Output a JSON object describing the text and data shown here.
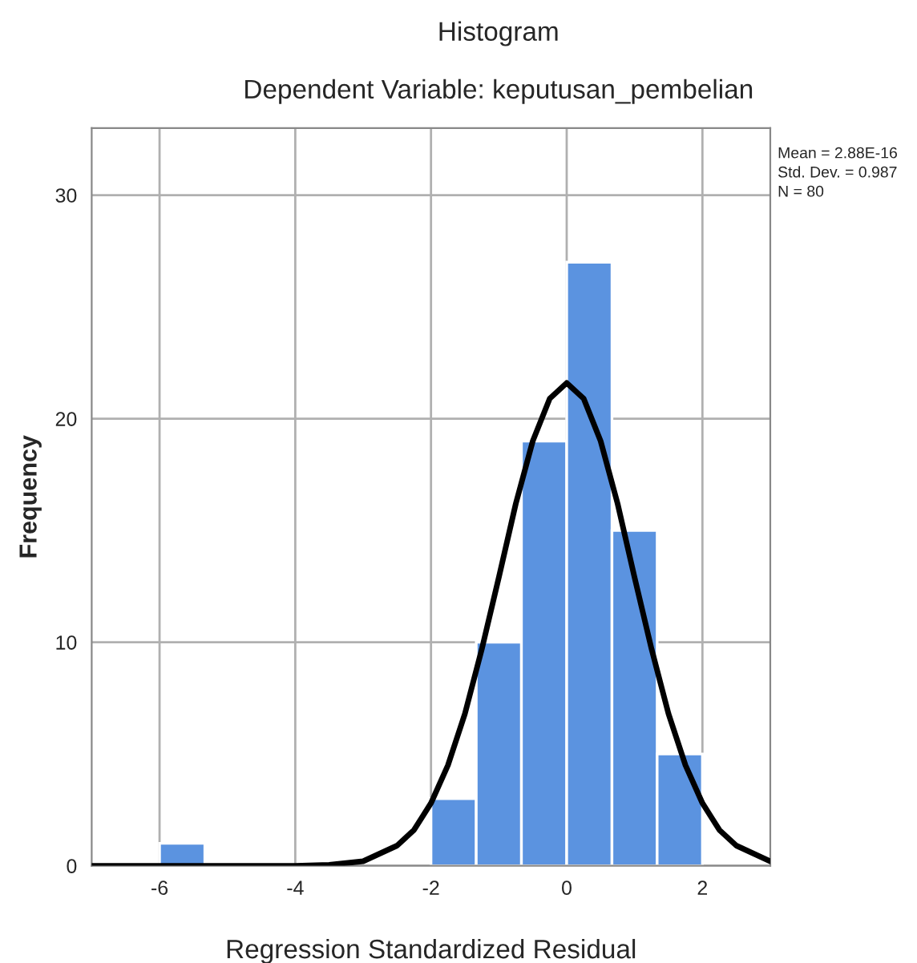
{
  "chart_data": {
    "type": "histogram",
    "title": "Histogram",
    "subtitle": "Dependent Variable: keputusan_pembelian",
    "xlabel": "Regression Standardized Residual",
    "ylabel": "Frequency",
    "bins": [
      -6,
      -5.333,
      -4.667,
      -4,
      -3.333,
      -2.667,
      -2,
      -1.333,
      -0.667,
      0,
      0.667,
      1.333,
      2
    ],
    "values": [
      1,
      0,
      0,
      0,
      0,
      0,
      3,
      10,
      19,
      27,
      15,
      5
    ],
    "color": "#5b93e0",
    "series": [
      {
        "type": "line",
        "color": "#000000",
        "x": [
          -7,
          -4,
          -3.5,
          -3,
          -2.5,
          -2.25,
          -2,
          -1.75,
          -1.5,
          -1.25,
          -1,
          -0.75,
          -0.5,
          -0.25,
          0,
          0.25,
          0.5,
          0.75,
          1,
          1.25,
          1.5,
          1.75,
          2,
          2.25,
          2.5,
          3
        ],
        "values": [
          0,
          0,
          0.04,
          0.2,
          0.9,
          1.6,
          2.8,
          4.5,
          6.8,
          9.7,
          12.9,
          16.2,
          19.0,
          20.9,
          21.6,
          20.9,
          19.0,
          16.2,
          12.9,
          9.7,
          6.8,
          4.5,
          2.8,
          1.6,
          0.9,
          0.2
        ]
      }
    ],
    "xlim": [
      -7,
      3
    ],
    "xticks": [
      -6,
      -4,
      -2,
      0,
      2
    ],
    "ylim": [
      0,
      33
    ],
    "yticks": [
      0,
      10,
      20,
      30
    ],
    "grid": true,
    "legend": false,
    "annotations": [
      "Mean = 2.88E-16",
      "Std. Dev. = 0.987",
      "N = 80"
    ]
  }
}
